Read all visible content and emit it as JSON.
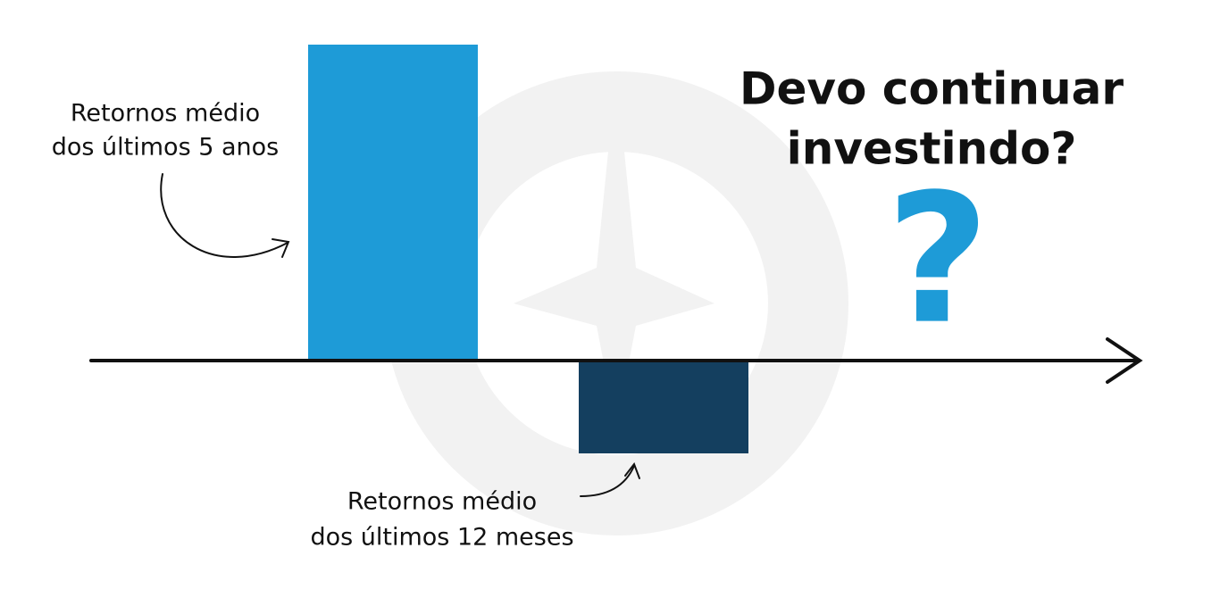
{
  "labels": {
    "long_term": [
      "Retornos médio",
      "dos últimos 5 anos"
    ],
    "short_term": [
      "Retornos médio",
      "dos últimos 12 meses"
    ]
  },
  "title": [
    "Devo continuar",
    "investindo?"
  ],
  "question_mark": "?"
}
